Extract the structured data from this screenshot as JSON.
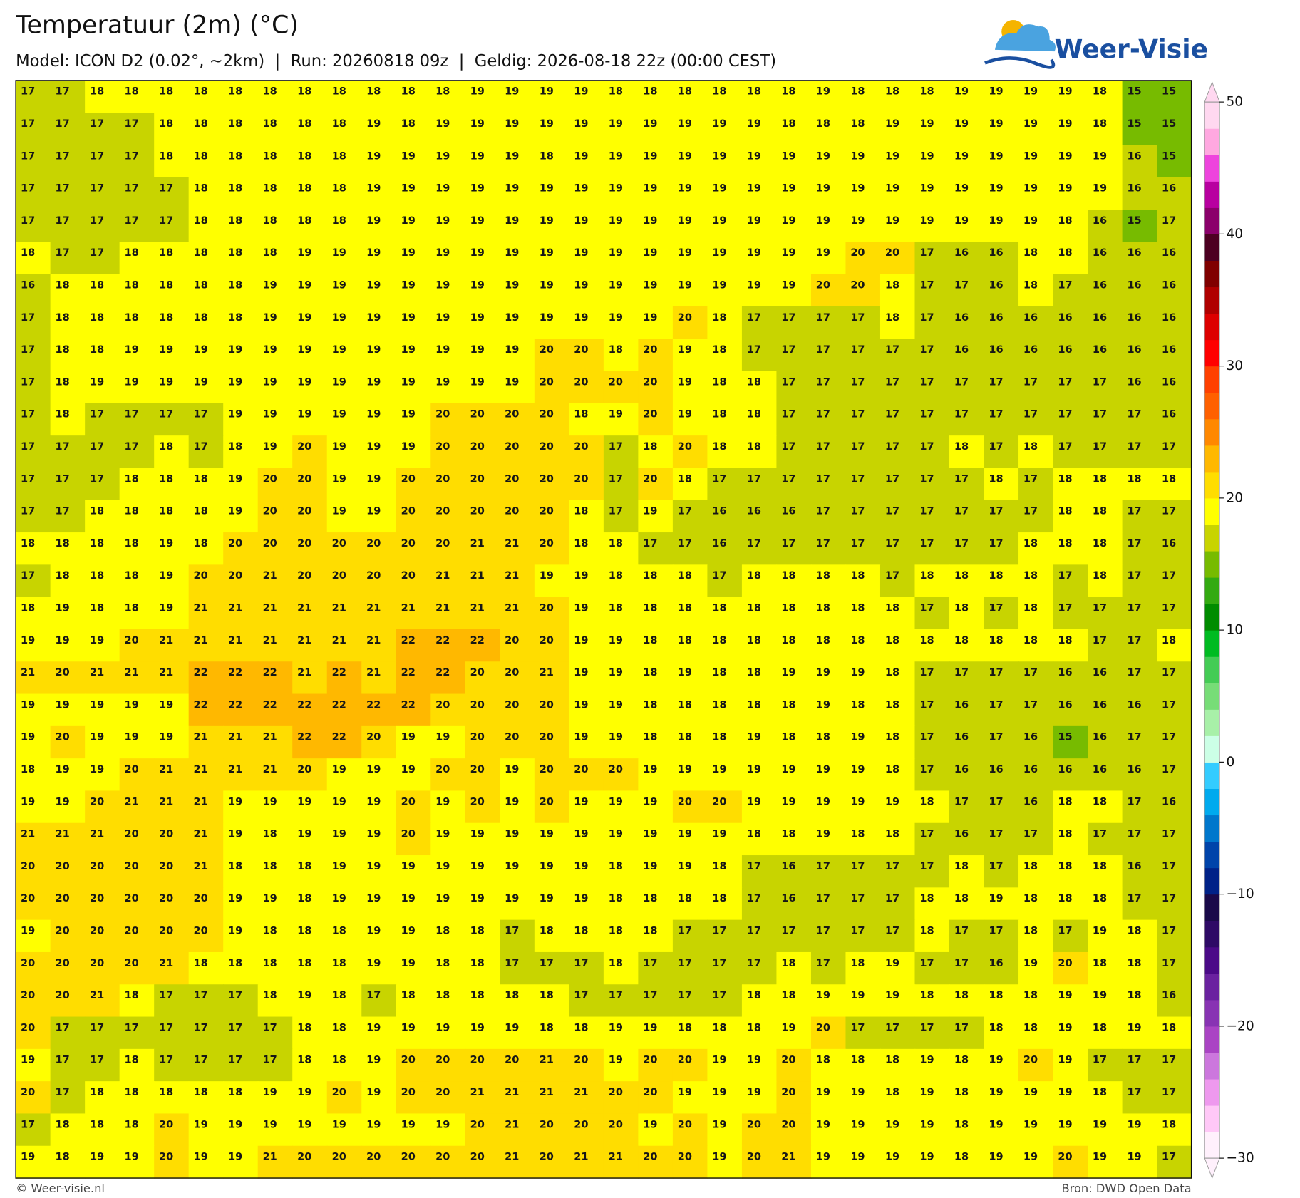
{
  "chart_data": {
    "type": "heatmap",
    "title": "Temperatuur (2m) (°C)",
    "subtitle": "Model: ICON D2 (0.02°, ~2km)  |  Run: 20260818 09z  |  Geldig: 2026-08-18 22z (00:00 CEST)",
    "logo": "Weer-Visie",
    "credit": "© Weer-visie.nl",
    "source": "Bron: DWD Open Data",
    "values": [
      [
        17,
        17,
        18,
        18,
        18,
        18,
        18,
        18,
        18,
        18,
        18,
        18,
        18,
        19,
        19,
        19,
        19,
        18,
        18,
        18,
        18,
        18,
        18,
        19,
        18,
        18,
        18,
        19,
        19,
        19,
        19,
        18,
        15,
        15
      ],
      [
        17,
        17,
        17,
        17,
        18,
        18,
        18,
        18,
        18,
        18,
        19,
        18,
        19,
        19,
        19,
        19,
        19,
        19,
        19,
        19,
        19,
        19,
        18,
        18,
        18,
        19,
        19,
        19,
        19,
        19,
        19,
        18,
        15,
        15
      ],
      [
        17,
        17,
        17,
        17,
        18,
        18,
        18,
        18,
        18,
        18,
        19,
        19,
        19,
        19,
        19,
        18,
        19,
        19,
        19,
        19,
        19,
        19,
        19,
        19,
        19,
        19,
        19,
        19,
        19,
        19,
        19,
        19,
        16,
        15
      ],
      [
        17,
        17,
        17,
        17,
        17,
        18,
        18,
        18,
        18,
        18,
        19,
        19,
        19,
        19,
        19,
        19,
        19,
        19,
        19,
        19,
        19,
        19,
        19,
        19,
        19,
        19,
        19,
        19,
        19,
        19,
        19,
        19,
        16,
        16
      ],
      [
        17,
        17,
        17,
        17,
        17,
        18,
        18,
        18,
        18,
        18,
        19,
        19,
        19,
        19,
        19,
        19,
        19,
        19,
        19,
        19,
        19,
        19,
        19,
        19,
        19,
        19,
        19,
        19,
        19,
        19,
        18,
        16,
        15,
        17
      ],
      [
        18,
        17,
        17,
        18,
        18,
        18,
        18,
        18,
        19,
        19,
        19,
        19,
        19,
        19,
        19,
        19,
        19,
        19,
        19,
        19,
        19,
        19,
        19,
        19,
        20,
        20,
        17,
        16,
        16,
        18,
        18,
        16,
        16,
        16
      ],
      [
        16,
        18,
        18,
        18,
        18,
        18,
        18,
        19,
        19,
        19,
        19,
        19,
        19,
        19,
        19,
        19,
        19,
        19,
        19,
        19,
        19,
        19,
        19,
        20,
        20,
        18,
        17,
        17,
        16,
        18,
        17,
        16,
        16,
        16
      ],
      [
        17,
        18,
        18,
        18,
        18,
        18,
        18,
        19,
        19,
        19,
        19,
        19,
        19,
        19,
        19,
        19,
        19,
        19,
        19,
        20,
        18,
        17,
        17,
        17,
        17,
        18,
        17,
        16,
        16,
        16,
        16,
        16,
        16,
        16
      ],
      [
        17,
        18,
        18,
        19,
        19,
        19,
        19,
        19,
        19,
        19,
        19,
        19,
        19,
        19,
        19,
        20,
        20,
        18,
        20,
        19,
        18,
        17,
        17,
        17,
        17,
        17,
        17,
        16,
        16,
        16,
        16,
        16,
        16,
        16
      ],
      [
        17,
        18,
        19,
        19,
        19,
        19,
        19,
        19,
        19,
        19,
        19,
        19,
        19,
        19,
        19,
        20,
        20,
        20,
        20,
        19,
        18,
        18,
        17,
        17,
        17,
        17,
        17,
        17,
        17,
        17,
        17,
        17,
        16,
        16
      ],
      [
        17,
        18,
        17,
        17,
        17,
        17,
        19,
        19,
        19,
        19,
        19,
        19,
        20,
        20,
        20,
        20,
        18,
        19,
        20,
        19,
        18,
        18,
        17,
        17,
        17,
        17,
        17,
        17,
        17,
        17,
        17,
        17,
        17,
        16
      ],
      [
        17,
        17,
        17,
        17,
        18,
        17,
        18,
        19,
        20,
        19,
        19,
        19,
        20,
        20,
        20,
        20,
        20,
        17,
        18,
        20,
        18,
        18,
        17,
        17,
        17,
        17,
        17,
        18,
        17,
        18,
        17,
        17,
        17,
        17
      ],
      [
        17,
        17,
        17,
        18,
        18,
        18,
        19,
        20,
        20,
        19,
        19,
        20,
        20,
        20,
        20,
        20,
        20,
        17,
        20,
        18,
        17,
        17,
        17,
        17,
        17,
        17,
        17,
        17,
        18,
        17,
        18,
        18,
        18,
        18
      ],
      [
        17,
        17,
        18,
        18,
        18,
        18,
        19,
        20,
        20,
        19,
        19,
        20,
        20,
        20,
        20,
        20,
        18,
        17,
        19,
        17,
        16,
        16,
        16,
        17,
        17,
        17,
        17,
        17,
        17,
        17,
        18,
        18,
        17,
        17
      ],
      [
        18,
        18,
        18,
        18,
        19,
        18,
        20,
        20,
        20,
        20,
        20,
        20,
        20,
        21,
        21,
        20,
        18,
        18,
        17,
        17,
        16,
        17,
        17,
        17,
        17,
        17,
        17,
        17,
        17,
        18,
        18,
        18,
        17,
        16
      ],
      [
        17,
        18,
        18,
        18,
        19,
        20,
        20,
        21,
        20,
        20,
        20,
        20,
        21,
        21,
        21,
        19,
        19,
        18,
        18,
        18,
        17,
        18,
        18,
        18,
        18,
        17,
        18,
        18,
        18,
        18,
        17,
        18,
        17,
        17
      ],
      [
        18,
        19,
        18,
        18,
        19,
        21,
        21,
        21,
        21,
        21,
        21,
        21,
        21,
        21,
        21,
        20,
        19,
        18,
        18,
        18,
        18,
        18,
        18,
        18,
        18,
        18,
        17,
        18,
        17,
        18,
        17,
        17,
        17,
        17
      ],
      [
        19,
        19,
        19,
        20,
        21,
        21,
        21,
        21,
        21,
        21,
        21,
        22,
        22,
        22,
        20,
        20,
        19,
        19,
        18,
        18,
        18,
        18,
        18,
        18,
        18,
        18,
        18,
        18,
        18,
        18,
        18,
        17,
        17,
        18
      ],
      [
        21,
        20,
        21,
        21,
        21,
        22,
        22,
        22,
        21,
        22,
        21,
        22,
        22,
        20,
        20,
        21,
        19,
        19,
        18,
        19,
        18,
        18,
        19,
        19,
        19,
        18,
        17,
        17,
        17,
        17,
        16,
        16,
        17,
        17
      ],
      [
        19,
        19,
        19,
        19,
        19,
        22,
        22,
        22,
        22,
        22,
        22,
        22,
        20,
        20,
        20,
        20,
        19,
        19,
        18,
        18,
        18,
        18,
        18,
        19,
        18,
        18,
        17,
        16,
        17,
        17,
        16,
        16,
        16,
        17
      ],
      [
        19,
        20,
        19,
        19,
        19,
        21,
        21,
        21,
        22,
        22,
        20,
        19,
        19,
        20,
        20,
        20,
        19,
        19,
        18,
        18,
        18,
        19,
        18,
        18,
        19,
        18,
        17,
        16,
        17,
        16,
        15,
        16,
        17,
        17
      ],
      [
        18,
        19,
        19,
        20,
        21,
        21,
        21,
        21,
        20,
        19,
        19,
        19,
        20,
        20,
        19,
        20,
        20,
        20,
        19,
        19,
        19,
        19,
        19,
        19,
        19,
        18,
        17,
        16,
        16,
        16,
        16,
        16,
        16,
        17
      ],
      [
        19,
        19,
        20,
        21,
        21,
        21,
        19,
        19,
        19,
        19,
        19,
        20,
        19,
        20,
        19,
        20,
        19,
        19,
        19,
        20,
        20,
        19,
        19,
        19,
        19,
        19,
        18,
        17,
        17,
        16,
        18,
        18,
        17,
        16
      ],
      [
        21,
        21,
        21,
        20,
        20,
        21,
        19,
        18,
        19,
        19,
        19,
        20,
        19,
        19,
        19,
        19,
        19,
        19,
        19,
        19,
        19,
        18,
        18,
        19,
        18,
        18,
        17,
        16,
        17,
        17,
        18,
        17,
        17,
        17
      ],
      [
        20,
        20,
        20,
        20,
        20,
        21,
        18,
        18,
        18,
        19,
        19,
        19,
        19,
        19,
        19,
        19,
        19,
        18,
        19,
        19,
        18,
        17,
        16,
        17,
        17,
        17,
        17,
        18,
        17,
        18,
        18,
        18,
        16,
        17
      ],
      [
        20,
        20,
        20,
        20,
        20,
        20,
        19,
        19,
        18,
        19,
        19,
        19,
        19,
        19,
        19,
        19,
        19,
        18,
        18,
        18,
        18,
        17,
        16,
        17,
        17,
        17,
        18,
        18,
        19,
        18,
        18,
        18,
        17,
        17
      ],
      [
        19,
        20,
        20,
        20,
        20,
        20,
        19,
        18,
        18,
        18,
        19,
        19,
        18,
        18,
        17,
        18,
        18,
        18,
        18,
        17,
        17,
        17,
        17,
        17,
        17,
        17,
        18,
        17,
        17,
        18,
        17,
        19,
        18,
        17
      ],
      [
        20,
        20,
        20,
        20,
        21,
        18,
        18,
        18,
        18,
        18,
        19,
        19,
        18,
        18,
        17,
        17,
        17,
        18,
        17,
        17,
        17,
        17,
        18,
        17,
        18,
        19,
        17,
        17,
        16,
        19,
        20,
        18,
        18,
        17
      ],
      [
        20,
        20,
        21,
        18,
        17,
        17,
        17,
        18,
        19,
        18,
        17,
        18,
        18,
        18,
        18,
        18,
        17,
        17,
        17,
        17,
        17,
        18,
        18,
        19,
        19,
        19,
        18,
        18,
        18,
        18,
        19,
        19,
        18,
        16
      ],
      [
        20,
        17,
        17,
        17,
        17,
        17,
        17,
        17,
        18,
        18,
        19,
        19,
        19,
        19,
        19,
        18,
        18,
        19,
        19,
        18,
        18,
        18,
        19,
        20,
        17,
        17,
        17,
        17,
        18,
        18,
        19,
        18,
        19,
        18
      ],
      [
        19,
        17,
        17,
        18,
        17,
        17,
        17,
        17,
        18,
        18,
        19,
        20,
        20,
        20,
        20,
        21,
        20,
        19,
        20,
        20,
        19,
        19,
        20,
        18,
        18,
        18,
        19,
        18,
        19,
        20,
        19,
        17,
        17,
        17
      ],
      [
        20,
        17,
        18,
        18,
        18,
        18,
        18,
        19,
        19,
        20,
        19,
        20,
        20,
        21,
        21,
        21,
        21,
        20,
        20,
        19,
        19,
        19,
        20,
        19,
        19,
        18,
        19,
        18,
        19,
        19,
        19,
        18,
        17,
        17
      ],
      [
        17,
        18,
        18,
        18,
        20,
        19,
        19,
        19,
        19,
        19,
        19,
        19,
        19,
        20,
        21,
        20,
        20,
        20,
        19,
        20,
        19,
        20,
        20,
        19,
        19,
        19,
        19,
        18,
        19,
        19,
        19,
        19,
        19,
        18
      ],
      [
        19,
        18,
        19,
        19,
        20,
        19,
        19,
        21,
        20,
        20,
        20,
        20,
        20,
        20,
        21,
        20,
        21,
        21,
        20,
        20,
        19,
        20,
        21,
        19,
        19,
        19,
        19,
        18,
        19,
        19,
        20,
        19,
        19,
        17
      ]
    ],
    "colorbar": {
      "lim": [
        -30,
        50
      ],
      "ticks": [
        50,
        40,
        30,
        20,
        10,
        0,
        {
          "value": -10,
          "label": "−10"
        },
        {
          "value": -20,
          "label": "−20"
        },
        {
          "value": -30,
          "label": "−30"
        }
      ],
      "colors": [
        "#fff0fc",
        "#ffc8f7",
        "#ee99ee",
        "#cc77dd",
        "#aa44c4",
        "#8833b3",
        "#6a22a0",
        "#4b0a88",
        "#2e0a66",
        "#1a0a4a",
        "#002288",
        "#0044aa",
        "#0077cc",
        "#00aaee",
        "#33ccff",
        "#ccffe6",
        "#a8f0a8",
        "#77dd77",
        "#44cc55",
        "#00bb22",
        "#008c00",
        "#33aa11",
        "#77bb00",
        "#c8d400",
        "#ffff00",
        "#ffdd00",
        "#ffb800",
        "#ff8800",
        "#ff6000",
        "#ff4000",
        "#ff0000",
        "#dd0000",
        "#b00000",
        "#800000",
        "#4d0022",
        "#8b006b",
        "#b800a0",
        "#ee44dd",
        "#ffa8e0",
        "#ffd8f0"
      ]
    }
  }
}
